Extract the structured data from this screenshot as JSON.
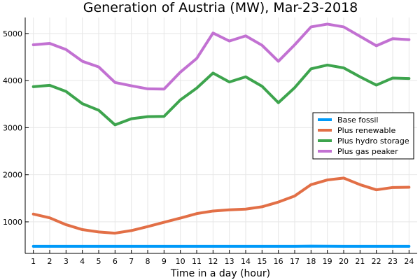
{
  "chart_data": {
    "type": "line",
    "title": "Generation of Austria (MW), Mar-23-2018",
    "xlabel": "Time in a day (hour)",
    "ylabel": "",
    "x": [
      1,
      2,
      3,
      4,
      5,
      6,
      7,
      8,
      9,
      10,
      11,
      12,
      13,
      14,
      15,
      16,
      17,
      18,
      19,
      20,
      21,
      22,
      23,
      24
    ],
    "xticks": [
      "1",
      "2",
      "3",
      "4",
      "5",
      "6",
      "7",
      "8",
      "9",
      "10",
      "11",
      "12",
      "13",
      "14",
      "15",
      "16",
      "17",
      "18",
      "19",
      "20",
      "21",
      "22",
      "23",
      "24"
    ],
    "xlim": [
      0.5,
      24.5
    ],
    "ylim": [
      330,
      5340
    ],
    "yticks": [
      1000,
      2000,
      3000,
      4000,
      5000
    ],
    "ytick_labels": [
      "1000",
      "2000",
      "3000",
      "4000",
      "5000"
    ],
    "grid": true,
    "legend_position": "right",
    "series": [
      {
        "name": "Base fossil",
        "color": "#009af9",
        "values": [
          480,
          480,
          480,
          480,
          480,
          480,
          480,
          480,
          480,
          480,
          480,
          480,
          480,
          480,
          480,
          480,
          480,
          485,
          482,
          480,
          480,
          480,
          480,
          480
        ]
      },
      {
        "name": "Plus renewable",
        "color": "#e26f46",
        "values": [
          1165,
          1085,
          940,
          835,
          785,
          760,
          815,
          900,
          990,
          1080,
          1175,
          1230,
          1255,
          1270,
          1320,
          1420,
          1550,
          1790,
          1890,
          1930,
          1790,
          1680,
          1730,
          1735
        ]
      },
      {
        "name": "Plus hydro storage",
        "color": "#3da44d",
        "values": [
          3870,
          3900,
          3770,
          3510,
          3370,
          3060,
          3190,
          3235,
          3240,
          3590,
          3840,
          4160,
          3970,
          4080,
          3880,
          3530,
          3850,
          4250,
          4330,
          4270,
          4080,
          3905,
          4055,
          4045
        ]
      },
      {
        "name": "Plus gas peaker",
        "color": "#c271d2",
        "values": [
          4760,
          4790,
          4660,
          4410,
          4290,
          3960,
          3890,
          3825,
          3820,
          4180,
          4470,
          5010,
          4840,
          4950,
          4750,
          4410,
          4760,
          5140,
          5200,
          5140,
          4940,
          4740,
          4890,
          4870
        ]
      }
    ]
  }
}
